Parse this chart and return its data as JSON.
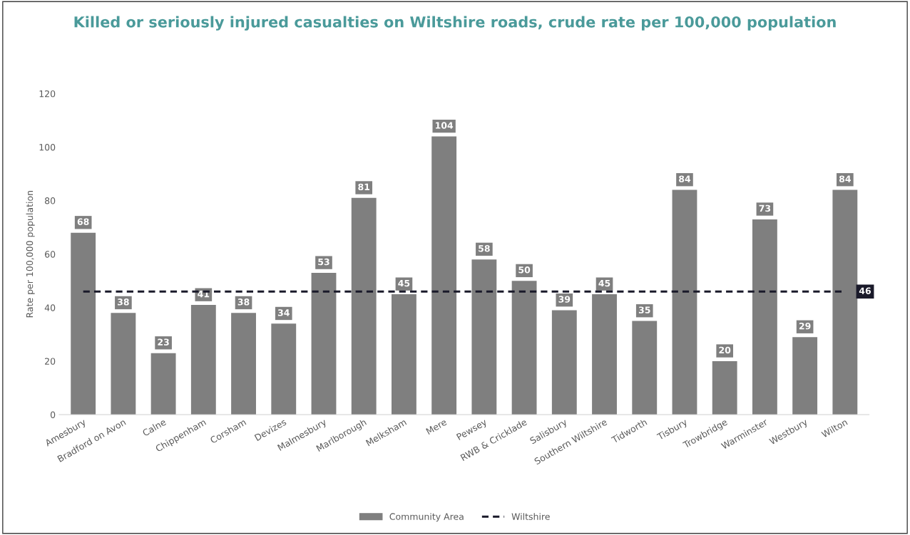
{
  "chart_data": {
    "type": "bar",
    "title": "Killed or seriously injured casualties on Wiltshire roads, crude rate per 100,000 population",
    "ylabel": "Rate per 100,000 population",
    "categories": [
      "Amesbury",
      "Bradford on Avon",
      "Calne",
      "Chippenham",
      "Corsham",
      "Devizes",
      "Malmesbury",
      "Marlborough",
      "Melksham",
      "Mere",
      "Pewsey",
      "RWB & Cricklade",
      "Salisbury",
      "Southern Wiltshire",
      "Tidworth",
      "Tisbury",
      "Trowbridge",
      "Warminster",
      "Westbury",
      "Wilton"
    ],
    "series": [
      {
        "name": "Community Area",
        "color": "#7f7f7f",
        "values": [
          68,
          38,
          23,
          41,
          38,
          34,
          53,
          81,
          45,
          104,
          58,
          50,
          39,
          45,
          35,
          84,
          20,
          73,
          29,
          84
        ],
        "data_labels": true
      },
      {
        "name": "Wiltshire",
        "type": "line",
        "color": "#1a1a2a",
        "line_style": "dashed",
        "values": [
          46,
          46,
          46,
          46,
          46,
          46,
          46,
          46,
          46,
          46,
          46,
          46,
          46,
          46,
          46,
          46,
          46,
          46,
          46,
          46
        ],
        "value_labels": [
          null,
          null,
          null,
          null,
          null,
          null,
          null,
          null,
          null,
          null,
          null,
          null,
          null,
          null,
          null,
          null,
          null,
          null,
          null,
          "46"
        ]
      }
    ],
    "ylim": [
      0,
      120
    ],
    "yticks": [
      0,
      20,
      40,
      60,
      80,
      100,
      120
    ],
    "grid": false,
    "legend": "bottom"
  }
}
